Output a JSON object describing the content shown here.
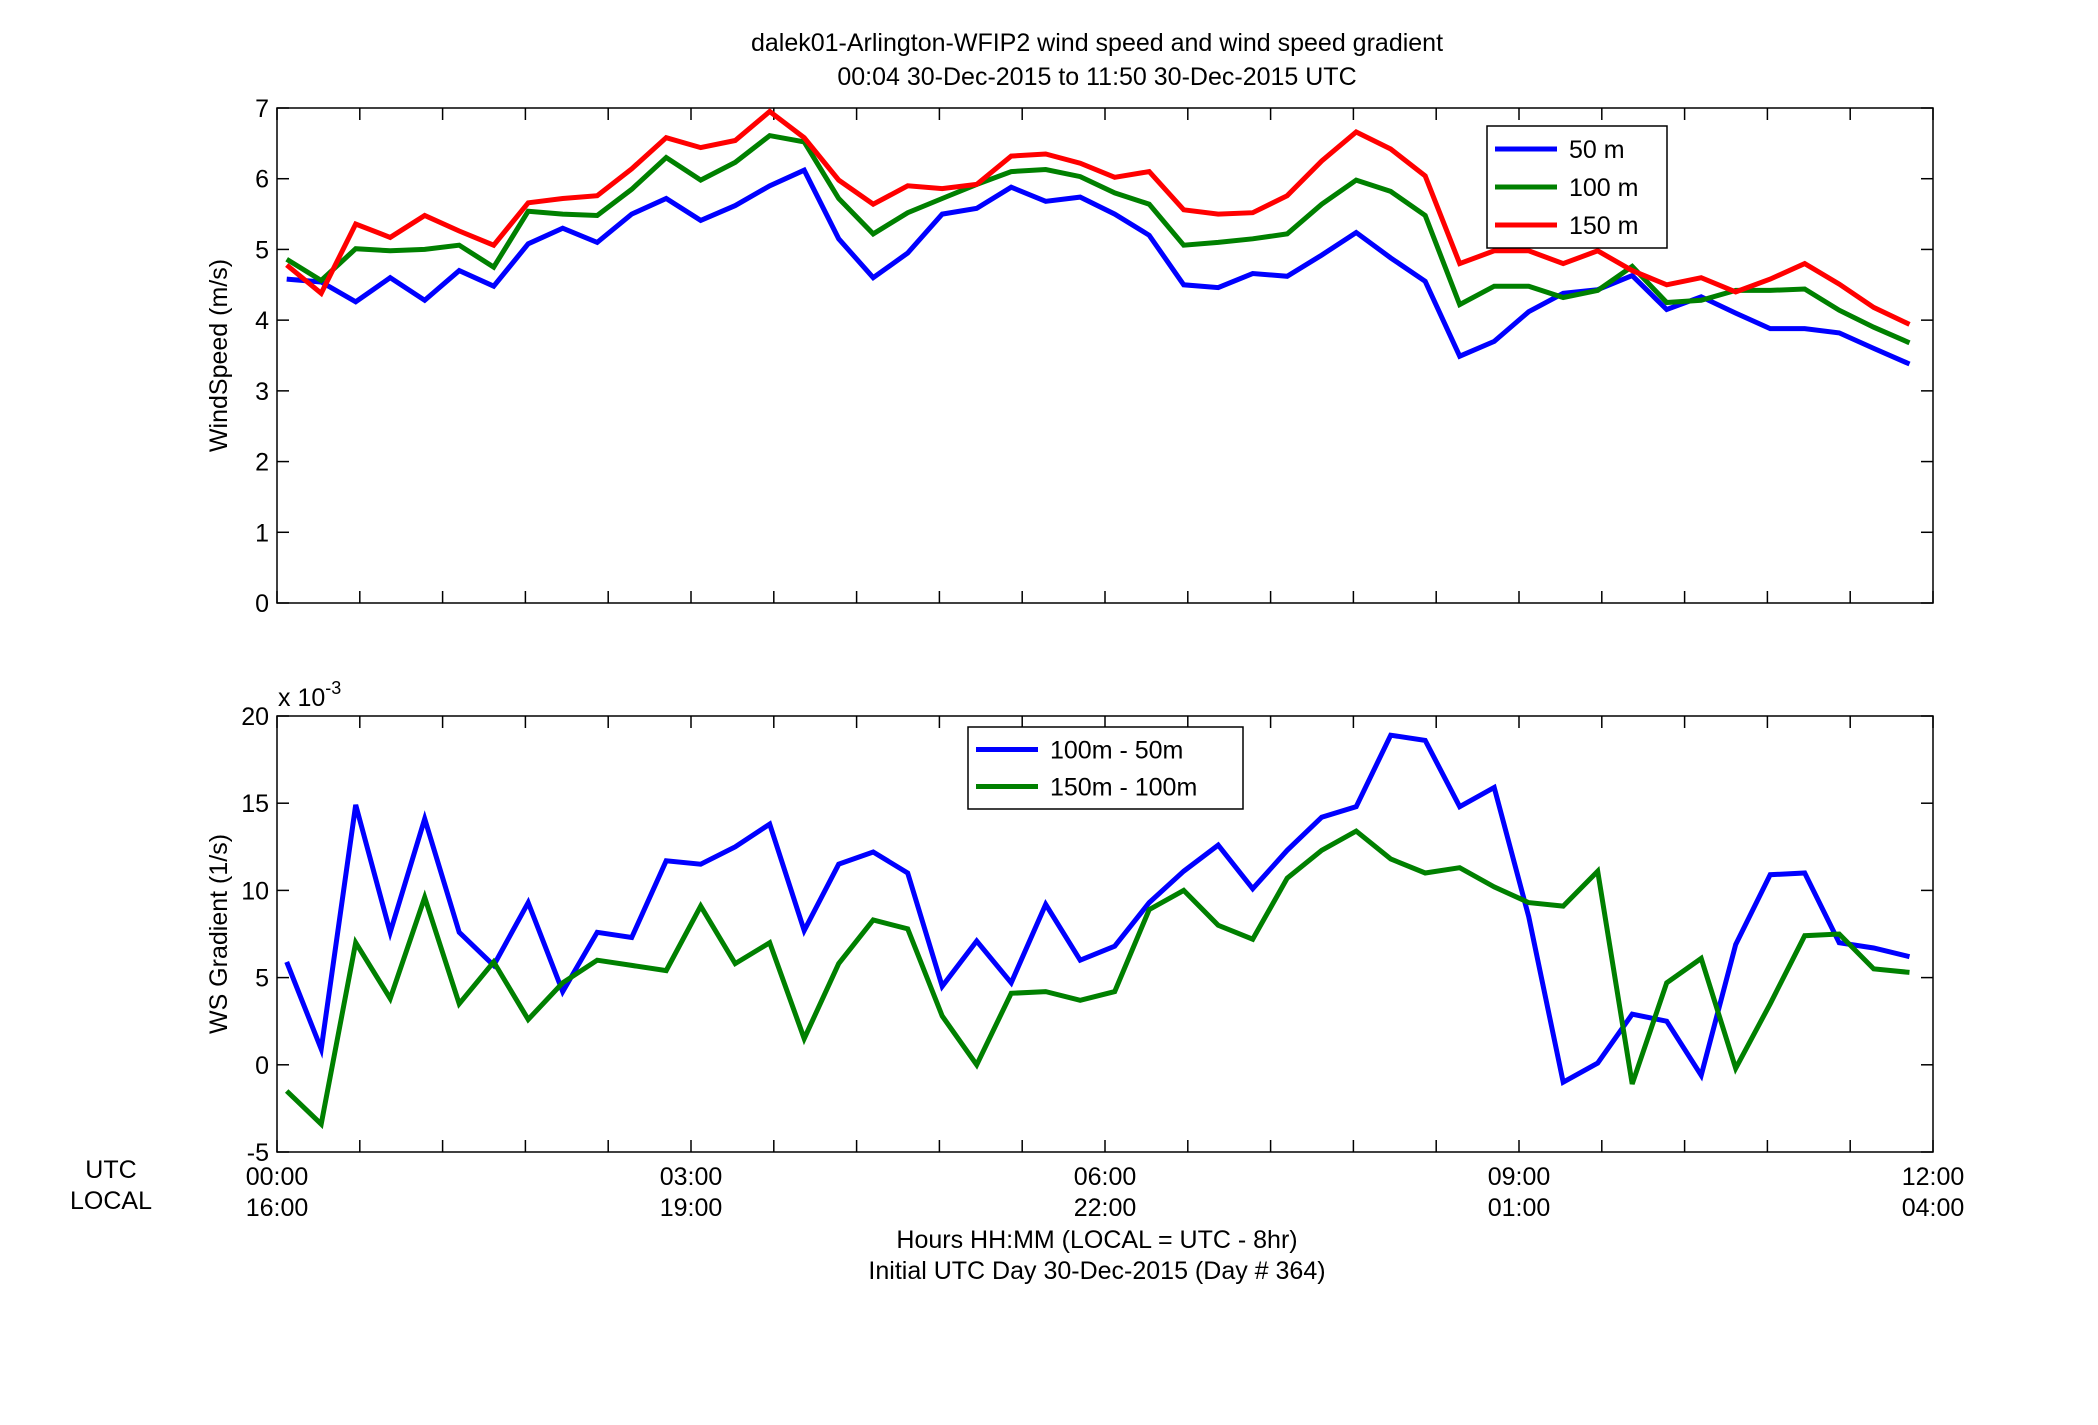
{
  "figure": {
    "title_line1": "dalek01-Arlington-WFIP2  wind speed and wind speed gradient",
    "title_line2": "00:04 30-Dec-2015 to 11:50 30-Dec-2015  UTC",
    "row_label_utc": "UTC",
    "row_label_local": "LOCAL",
    "xlabel_line1": "Hours HH:MM  (LOCAL = UTC - 8hr)",
    "xlabel_line2": "Initial UTC Day 30-Dec-2015 (Day # 364)"
  },
  "chart_data": [
    {
      "type": "line",
      "title": "",
      "xlabel": "",
      "ylabel": "WindSpeed (m/s)",
      "xlim": [
        0,
        12
      ],
      "ylim": [
        0,
        7
      ],
      "x_ticks": [
        0,
        0.6,
        1.2,
        1.8,
        2.4,
        3,
        3.6,
        4.2,
        4.8,
        5.4,
        6,
        6.6,
        7.2,
        7.8,
        8.4,
        9,
        9.6,
        10.2,
        10.8,
        11.4,
        12
      ],
      "x_tick_labels_utc": [
        "",
        "",
        "",
        "",
        "",
        "",
        "",
        "",
        "",
        "",
        "",
        "",
        "",
        "",
        "",
        "",
        "",
        "",
        "",
        "",
        ""
      ],
      "y_ticks": [
        0,
        1,
        2,
        3,
        4,
        5,
        6,
        7
      ],
      "y_tick_labels": [
        "0",
        "1",
        "2",
        "3",
        "4",
        "5",
        "6",
        "7"
      ],
      "legend_position": "top-right",
      "grid": false,
      "x": [
        0.07,
        0.32,
        0.57,
        0.82,
        1.07,
        1.32,
        1.57,
        1.82,
        2.07,
        2.32,
        2.57,
        2.82,
        3.07,
        3.32,
        3.57,
        3.82,
        4.07,
        4.32,
        4.57,
        4.82,
        5.07,
        5.32,
        5.57,
        5.82,
        6.07,
        6.32,
        6.57,
        6.82,
        7.07,
        7.32,
        7.57,
        7.82,
        8.07,
        8.32,
        8.57,
        8.82,
        9.07,
        9.32,
        9.57,
        9.82,
        10.07,
        10.32,
        10.57,
        10.82,
        11.07,
        11.32,
        11.57,
        11.83
      ],
      "series": [
        {
          "name": "50 m",
          "color": "#0000ff",
          "values": [
            4.58,
            4.54,
            4.26,
            4.6,
            4.28,
            4.7,
            4.48,
            5.08,
            5.3,
            5.1,
            5.5,
            5.72,
            5.41,
            5.62,
            5.9,
            6.12,
            5.15,
            4.6,
            4.95,
            5.5,
            5.58,
            5.88,
            5.68,
            5.74,
            5.5,
            5.2,
            4.5,
            4.46,
            4.66,
            4.62,
            4.92,
            5.24,
            4.88,
            4.55,
            3.49,
            3.7,
            4.12,
            4.38,
            4.43,
            4.63,
            4.15,
            4.33,
            4.1,
            3.88,
            3.88,
            3.82,
            3.6,
            3.38
          ]
        },
        {
          "name": "100 m",
          "color": "#008000",
          "values": [
            4.86,
            4.56,
            5.01,
            4.98,
            5.0,
            5.06,
            4.75,
            5.54,
            5.5,
            5.48,
            5.85,
            6.3,
            5.98,
            6.23,
            6.61,
            6.52,
            5.72,
            5.22,
            5.52,
            5.72,
            5.92,
            6.1,
            6.13,
            6.03,
            5.8,
            5.64,
            5.06,
            5.1,
            5.15,
            5.22,
            5.64,
            5.98,
            5.82,
            5.48,
            4.22,
            4.48,
            4.48,
            4.32,
            4.42,
            4.76,
            4.25,
            4.28,
            4.42,
            4.42,
            4.44,
            4.14,
            3.9,
            3.68
          ]
        },
        {
          "name": "150 m",
          "color": "#ff0000",
          "values": [
            4.78,
            4.38,
            5.36,
            5.17,
            5.48,
            5.26,
            5.06,
            5.66,
            5.72,
            5.76,
            6.14,
            6.58,
            6.44,
            6.54,
            6.95,
            6.58,
            5.98,
            5.64,
            5.9,
            5.86,
            5.92,
            6.32,
            6.35,
            6.22,
            6.02,
            6.1,
            5.56,
            5.5,
            5.52,
            5.76,
            6.25,
            6.66,
            6.42,
            6.04,
            4.8,
            4.98,
            4.98,
            4.8,
            4.98,
            4.7,
            4.5,
            4.6,
            4.4,
            4.58,
            4.8,
            4.51,
            4.18,
            3.94
          ]
        }
      ]
    },
    {
      "type": "line",
      "title": "",
      "xlabel": "",
      "ylabel": "WS Gradient (1/s)",
      "xlim": [
        0,
        12
      ],
      "ylim": [
        -0.005,
        0.02
      ],
      "x_ticks": [
        0,
        0.6,
        1.2,
        1.8,
        2.4,
        3,
        3.6,
        4.2,
        4.8,
        5.4,
        6,
        6.6,
        7.2,
        7.8,
        8.4,
        9,
        9.6,
        10.2,
        10.8,
        11.4,
        12
      ],
      "x_tick_labels_utc": [
        "00:00",
        "",
        "",
        "",
        "",
        "03:00",
        "",
        "",
        "",
        "",
        "06:00",
        "",
        "",
        "",
        "",
        "09:00",
        "",
        "",
        "",
        "",
        "12:00"
      ],
      "x_tick_labels_local": [
        "16:00",
        "",
        "",
        "",
        "",
        "19:00",
        "",
        "",
        "",
        "",
        "22:00",
        "",
        "",
        "",
        "",
        "01:00",
        "",
        "",
        "",
        "",
        "04:00"
      ],
      "y_ticks": [
        -0.005,
        0,
        0.005,
        0.01,
        0.015,
        0.02
      ],
      "y_tick_labels": [
        "-5",
        "0",
        "5",
        "10",
        "15",
        "20"
      ],
      "y_multiplier_base": "x 10",
      "y_multiplier_exp": "-3",
      "legend_position": "top-center",
      "grid": false,
      "x": [
        0.07,
        0.32,
        0.57,
        0.82,
        1.07,
        1.32,
        1.57,
        1.82,
        2.07,
        2.32,
        2.57,
        2.82,
        3.07,
        3.32,
        3.57,
        3.82,
        4.07,
        4.32,
        4.57,
        4.82,
        5.07,
        5.32,
        5.57,
        5.82,
        6.07,
        6.32,
        6.57,
        6.82,
        7.07,
        7.32,
        7.57,
        7.82,
        8.07,
        8.32,
        8.57,
        8.82,
        9.07,
        9.32,
        9.57,
        9.82,
        10.07,
        10.32,
        10.57,
        10.82,
        11.07,
        11.32,
        11.57,
        11.83
      ],
      "series": [
        {
          "name": "100m - 50m",
          "color": "#0000ff",
          "values": [
            0.0059,
            0.0009,
            0.0149,
            0.0076,
            0.0141,
            0.0076,
            0.0057,
            0.0093,
            0.0042,
            0.0076,
            0.0073,
            0.0117,
            0.0115,
            0.0125,
            0.0138,
            0.0077,
            0.0115,
            0.0122,
            0.011,
            0.0045,
            0.0071,
            0.0047,
            0.0092,
            0.006,
            0.0068,
            0.0093,
            0.0111,
            0.0126,
            0.0101,
            0.0123,
            0.0142,
            0.0148,
            0.0189,
            0.0186,
            0.0148,
            0.0159,
            0.0085,
            -0.001,
            0.0001,
            0.0029,
            0.0025,
            -0.0006,
            0.0069,
            0.0109,
            0.011,
            0.007,
            0.0067,
            0.0062
          ]
        },
        {
          "name": "150m - 100m",
          "color": "#008000",
          "values": [
            -0.0015,
            -0.0034,
            0.007,
            0.0038,
            0.0096,
            0.0035,
            0.0059,
            0.0026,
            0.0047,
            0.006,
            0.0057,
            0.0054,
            0.0091,
            0.0058,
            0.007,
            0.0015,
            0.0058,
            0.0083,
            0.0078,
            0.0028,
            0.0,
            0.0041,
            0.0042,
            0.0037,
            0.0042,
            0.0089,
            0.01,
            0.008,
            0.0072,
            0.0107,
            0.0123,
            0.0134,
            0.0118,
            0.011,
            0.0113,
            0.0102,
            0.0093,
            0.0091,
            0.0111,
            -0.0011,
            0.0047,
            0.0061,
            -0.0002,
            0.0035,
            0.0074,
            0.0075,
            0.0055,
            0.0053
          ]
        }
      ]
    }
  ]
}
